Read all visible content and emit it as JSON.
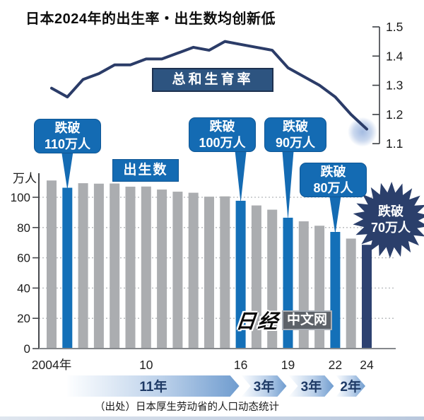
{
  "title": "日本2024年的出生率・出生数均创新低",
  "source": "（出处）日本厚生劳动省的人口动态统计",
  "watermark": {
    "brand": "日经",
    "suffix": "中文网"
  },
  "colors": {
    "bar_gray": "#abadb0",
    "bar_blue": "#1470b8",
    "bar_navy": "#2d4170",
    "line_navy": "#2b3c68",
    "halo_blue": "#9fb8e0",
    "callout_blue": "#146bb3",
    "burst_navy": "#2b3f6b",
    "arrow_text_navy": "#1e3a66",
    "grid_gray": "#b4b7ba",
    "axis_gray": "#47494d"
  },
  "chart_data": {
    "type": "combo_bar_line",
    "x_years": [
      2004,
      2005,
      2006,
      2007,
      2008,
      2009,
      2010,
      2011,
      2012,
      2013,
      2014,
      2015,
      2016,
      2017,
      2018,
      2019,
      2020,
      2021,
      2022,
      2023,
      2024
    ],
    "series": [
      {
        "name": "总和生育率",
        "type": "line",
        "axis": "right",
        "values": [
          1.29,
          1.26,
          1.32,
          1.34,
          1.37,
          1.37,
          1.39,
          1.39,
          1.41,
          1.43,
          1.42,
          1.45,
          1.44,
          1.43,
          1.42,
          1.36,
          1.33,
          1.3,
          1.26,
          1.2,
          1.15
        ]
      },
      {
        "name": "出生数",
        "type": "bar",
        "axis": "left",
        "unit": "万人",
        "values": [
          111.1,
          106.3,
          109.3,
          109.0,
          109.1,
          107.0,
          107.1,
          105.1,
          103.7,
          103.0,
          100.4,
          100.6,
          97.7,
          94.6,
          91.8,
          86.5,
          84.1,
          81.2,
          77.1,
          72.7,
          68.6
        ]
      }
    ],
    "left_axis": {
      "label": "万人",
      "ticks": [
        0,
        20,
        40,
        60,
        80,
        100
      ],
      "range": [
        0,
        115
      ],
      "grid": "dashed"
    },
    "right_axis": {
      "ticks": [
        1.1,
        1.2,
        1.3,
        1.4,
        1.5
      ],
      "range": [
        1.1,
        1.5
      ]
    },
    "x_tick_labels": [
      {
        "label": "2004年",
        "year": 2004
      },
      {
        "label": "10",
        "year": 2010
      },
      {
        "label": "16",
        "year": 2016
      },
      {
        "label": "19",
        "year": 2019
      },
      {
        "label": "22",
        "year": 2022
      },
      {
        "label": "24",
        "year": 2024
      }
    ],
    "highlight_years_blue": [
      2005,
      2016,
      2019,
      2022
    ],
    "highlight_year_navy": 2024,
    "legend_position": "inline-boxes"
  },
  "callouts": [
    {
      "label_line1": "跌破",
      "label_line2": "110万人",
      "target_year": 2005,
      "style": "box"
    },
    {
      "label_line1": "跌破",
      "label_line2": "100万人",
      "target_year": 2016,
      "style": "box"
    },
    {
      "label_line1": "跌破",
      "label_line2": "90万人",
      "target_year": 2019,
      "style": "box"
    },
    {
      "label_line1": "跌破",
      "label_line2": "80万人",
      "target_year": 2022,
      "style": "box"
    },
    {
      "label_line1": "跌破",
      "label_line2": "70万人",
      "target_year": 2024,
      "style": "starburst"
    }
  ],
  "era_arrows": [
    {
      "label": "11年",
      "from_year": 2005,
      "to_year": 2016
    },
    {
      "label": "3年",
      "from_year": 2016,
      "to_year": 2019
    },
    {
      "label": "3年",
      "from_year": 2019,
      "to_year": 2022
    },
    {
      "label": "2年",
      "from_year": 2022,
      "to_year": 2024
    }
  ]
}
